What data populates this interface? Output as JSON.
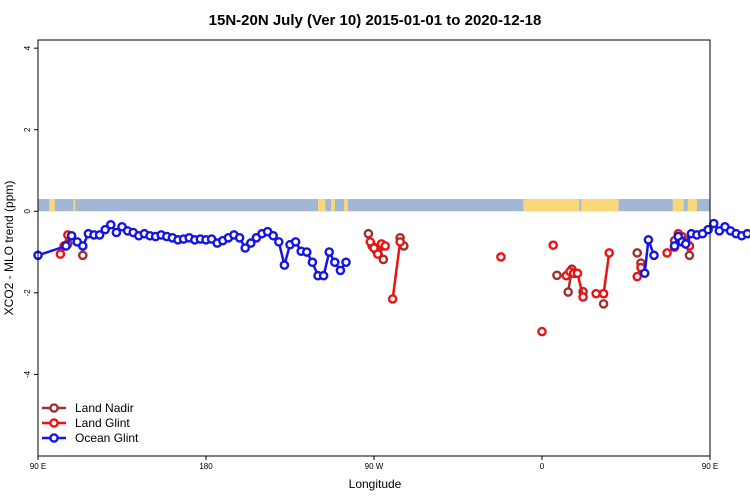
{
  "chart_data": {
    "type": "line",
    "title": "15N-20N July (Ver 10)   2015-01-01 to 2020-12-18",
    "xlabel": "Longitude",
    "ylabel": "XCO2 - MLO trend (ppm)",
    "xlim": [
      -90,
      270
    ],
    "ylim": [
      -6,
      4.2
    ],
    "x_ticks": [
      {
        "value": -90,
        "label": "90 E"
      },
      {
        "value": 0,
        "label": "180"
      },
      {
        "value": 90,
        "label": "90 W"
      },
      {
        "value": 180,
        "label": "0"
      },
      {
        "value": 270,
        "label": "90 E"
      }
    ],
    "y_ticks": [
      {
        "value": 4,
        "label": "4"
      },
      {
        "value": 2,
        "label": "2"
      },
      {
        "value": 0,
        "label": "0"
      },
      {
        "value": -2,
        "label": "-2"
      },
      {
        "value": -4,
        "label": "-4"
      }
    ],
    "map_strip": {
      "ocean_color": "#a2b6d6",
      "land_color": "#f8d878",
      "y_range": [
        0,
        0.3
      ]
    },
    "legend_position": "bottom-left",
    "series": [
      {
        "name": "Land Nadir",
        "color": "#a03030",
        "segments": [
          [
            [
              -76,
              -0.85
            ],
            [
              -74,
              -0.8
            ]
          ],
          [
            [
              -66,
              -1.08
            ]
          ],
          [
            [
              87,
              -0.55
            ],
            [
              89,
              -0.85
            ],
            [
              91,
              -0.95
            ],
            [
              93,
              -0.88
            ],
            [
              95,
              -1.18
            ]
          ],
          [
            [
              104,
              -0.65
            ],
            [
              106,
              -0.85
            ]
          ],
          [
            [
              188,
              -1.57
            ]
          ],
          [
            [
              194,
              -1.98
            ],
            [
              196,
              -1.42
            ],
            [
              198,
              -1.52
            ]
          ],
          [
            [
              202,
              -1.97
            ]
          ],
          [
            [
              213,
              -2.27
            ]
          ],
          [
            [
              231,
              -1.02
            ]
          ],
          [
            [
              233,
              -1.27
            ]
          ],
          [
            [
              251,
              -0.72
            ],
            [
              253,
              -0.58
            ],
            [
              255,
              -0.62
            ],
            [
              257,
              -0.72
            ],
            [
              259,
              -1.08
            ]
          ]
        ]
      },
      {
        "name": "Land Glint",
        "color": "#ee1111",
        "segments": [
          [
            [
              -78,
              -1.05
            ],
            [
              -76,
              -0.85
            ],
            [
              -74,
              -0.58
            ]
          ],
          [
            [
              88,
              -0.75
            ],
            [
              90,
              -0.9
            ],
            [
              92,
              -1.05
            ],
            [
              94,
              -0.8
            ],
            [
              96,
              -0.85
            ]
          ],
          [
            [
              100,
              -2.15
            ],
            [
              104,
              -0.75
            ]
          ],
          [
            [
              158,
              -1.12
            ]
          ],
          [
            [
              180,
              -2.95
            ]
          ],
          [
            [
              186,
              -0.83
            ]
          ],
          [
            [
              193,
              -1.58
            ],
            [
              195,
              -1.48
            ],
            [
              197,
              -1.52
            ],
            [
              199,
              -1.52
            ],
            [
              202,
              -2.1
            ]
          ],
          [
            [
              209,
              -2.02
            ],
            [
              213,
              -2.02
            ],
            [
              216,
              -1.02
            ]
          ],
          [
            [
              231,
              -1.6
            ],
            [
              233,
              -1.38
            ]
          ],
          [
            [
              247,
              -1.02
            ],
            [
              251,
              -0.88
            ],
            [
              253,
              -0.55
            ],
            [
              255,
              -0.72
            ],
            [
              257,
              -0.8
            ],
            [
              259,
              -0.85
            ]
          ]
        ]
      },
      {
        "name": "Ocean Glint",
        "color": "#1414e6",
        "segments": [
          [
            [
              -90,
              -1.08
            ],
            [
              -75,
              -0.85
            ],
            [
              -72,
              -0.6
            ],
            [
              -69,
              -0.75
            ],
            [
              -66,
              -0.85
            ],
            [
              -63,
              -0.55
            ],
            [
              -60,
              -0.58
            ],
            [
              -57,
              -0.58
            ],
            [
              -54,
              -0.45
            ],
            [
              -51,
              -0.33
            ],
            [
              -48,
              -0.52
            ],
            [
              -45,
              -0.38
            ],
            [
              -42,
              -0.48
            ],
            [
              -39,
              -0.52
            ],
            [
              -36,
              -0.6
            ],
            [
              -33,
              -0.55
            ],
            [
              -30,
              -0.6
            ],
            [
              -27,
              -0.62
            ],
            [
              -24,
              -0.58
            ],
            [
              -21,
              -0.62
            ],
            [
              -18,
              -0.65
            ],
            [
              -15,
              -0.7
            ],
            [
              -12,
              -0.68
            ],
            [
              -9,
              -0.65
            ],
            [
              -6,
              -0.7
            ],
            [
              -3,
              -0.68
            ],
            [
              0,
              -0.7
            ],
            [
              3,
              -0.68
            ],
            [
              6,
              -0.78
            ],
            [
              9,
              -0.72
            ],
            [
              12,
              -0.65
            ],
            [
              15,
              -0.58
            ],
            [
              18,
              -0.65
            ],
            [
              21,
              -0.9
            ],
            [
              24,
              -0.78
            ],
            [
              27,
              -0.65
            ],
            [
              30,
              -0.55
            ],
            [
              33,
              -0.5
            ],
            [
              36,
              -0.6
            ],
            [
              39,
              -0.75
            ],
            [
              42,
              -1.32
            ],
            [
              45,
              -0.82
            ],
            [
              48,
              -0.75
            ],
            [
              51,
              -0.98
            ],
            [
              54,
              -1.0
            ],
            [
              57,
              -1.25
            ],
            [
              60,
              -1.58
            ],
            [
              63,
              -1.58
            ],
            [
              66,
              -1.0
            ],
            [
              69,
              -1.25
            ],
            [
              72,
              -1.45
            ],
            [
              75,
              -1.25
            ]
          ],
          [
            [
              235,
              -1.52
            ],
            [
              237,
              -0.7
            ],
            [
              240,
              -1.08
            ]
          ],
          [
            [
              251,
              -0.85
            ],
            [
              253,
              -0.62
            ],
            [
              255,
              -0.75
            ],
            [
              257,
              -0.8
            ],
            [
              260,
              -0.55
            ],
            [
              263,
              -0.58
            ],
            [
              266,
              -0.55
            ],
            [
              269,
              -0.45
            ],
            [
              272,
              -0.3
            ],
            [
              275,
              -0.48
            ],
            [
              278,
              -0.38
            ],
            [
              281,
              -0.48
            ],
            [
              284,
              -0.55
            ],
            [
              287,
              -0.6
            ],
            [
              290,
              -0.55
            ]
          ]
        ]
      }
    ]
  }
}
